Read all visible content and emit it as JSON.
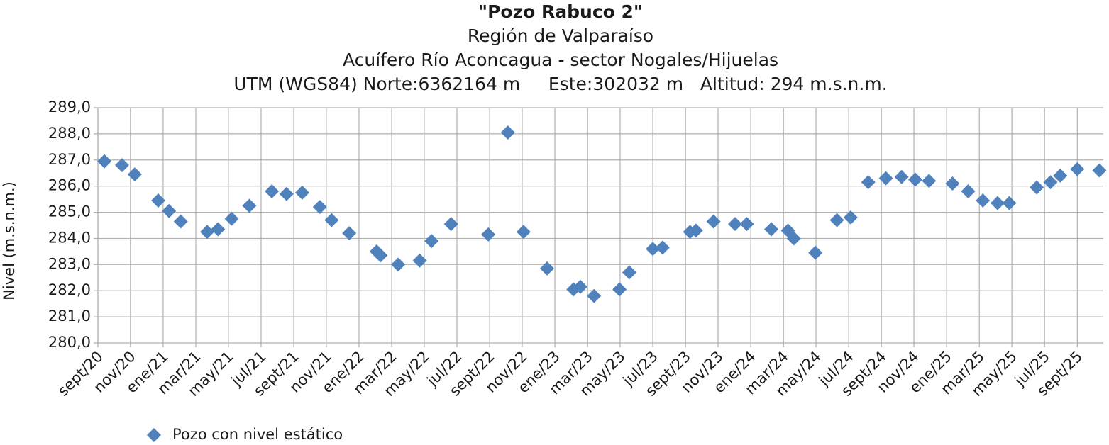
{
  "chart_data": {
    "type": "scatter",
    "title": "\"Pozo Rabuco 2\"",
    "subtitles": [
      "Región de Valparaíso",
      "Acuífero Río Aconcagua - sector Nogales/Hijuelas",
      "UTM (WGS84) Norte:6362164 m     Este:302032 m   Altitud: 294 m.s.n.m."
    ],
    "y_label": "Nivel (m.s.n.m.)",
    "grid": true,
    "legend": "bottom-left",
    "xlim": [
      2020.667,
      2025.8
    ],
    "ylim": [
      280,
      289
    ],
    "yticks": [
      {
        "value": 280,
        "label": "280,0"
      },
      {
        "value": 281,
        "label": "281,0"
      },
      {
        "value": 282,
        "label": "282,0"
      },
      {
        "value": 283,
        "label": "283,0"
      },
      {
        "value": 284,
        "label": "284,0"
      },
      {
        "value": 285,
        "label": "285,0"
      },
      {
        "value": 286,
        "label": "286,0"
      },
      {
        "value": 287,
        "label": "287,0"
      },
      {
        "value": 288,
        "label": "288,0"
      },
      {
        "value": 289,
        "label": "289,0"
      }
    ],
    "xticks": [
      {
        "value": 2020.667,
        "label": "sept/20"
      },
      {
        "value": 2020.833,
        "label": "nov/20"
      },
      {
        "value": 2021,
        "label": "ene/21"
      },
      {
        "value": 2021.167,
        "label": "mar/21"
      },
      {
        "value": 2021.333,
        "label": "may/21"
      },
      {
        "value": 2021.5,
        "label": "jul/21"
      },
      {
        "value": 2021.667,
        "label": "sept/21"
      },
      {
        "value": 2021.833,
        "label": "nov/21"
      },
      {
        "value": 2022,
        "label": "ene/22"
      },
      {
        "value": 2022.167,
        "label": "mar/22"
      },
      {
        "value": 2022.333,
        "label": "may/22"
      },
      {
        "value": 2022.5,
        "label": "jul/22"
      },
      {
        "value": 2022.667,
        "label": "sept/22"
      },
      {
        "value": 2022.833,
        "label": "nov/22"
      },
      {
        "value": 2023,
        "label": "ene/23"
      },
      {
        "value": 2023.167,
        "label": "mar/23"
      },
      {
        "value": 2023.333,
        "label": "may/23"
      },
      {
        "value": 2023.5,
        "label": "jul/23"
      },
      {
        "value": 2023.667,
        "label": "sept/23"
      },
      {
        "value": 2023.833,
        "label": "nov/23"
      },
      {
        "value": 2024,
        "label": "ene/24"
      },
      {
        "value": 2024.167,
        "label": "mar/24"
      },
      {
        "value": 2024.333,
        "label": "may/24"
      },
      {
        "value": 2024.5,
        "label": "jul/24"
      },
      {
        "value": 2024.667,
        "label": "sept/24"
      },
      {
        "value": 2024.833,
        "label": "nov/24"
      },
      {
        "value": 2025,
        "label": "ene/25"
      },
      {
        "value": 2025.167,
        "label": "mar/25"
      },
      {
        "value": 2025.333,
        "label": "may/25"
      },
      {
        "value": 2025.5,
        "label": "jul/25"
      },
      {
        "value": 2025.667,
        "label": "sept/25"
      }
    ],
    "series": [
      {
        "name": "Pozo con nivel estático",
        "color": "#4f81bd",
        "x": [
          2020.7,
          2020.79,
          2020.855,
          2020.975,
          2021.03,
          2021.09,
          2021.225,
          2021.28,
          2021.35,
          2021.44,
          2021.555,
          2021.63,
          2021.71,
          2021.8,
          2021.86,
          2021.95,
          2022.09,
          2022.11,
          2022.2,
          2022.31,
          2022.37,
          2022.47,
          2022.66,
          2022.76,
          2022.84,
          2022.96,
          2023.095,
          2023.13,
          2023.2,
          2023.33,
          2023.38,
          2023.5,
          2023.55,
          2023.69,
          2023.72,
          2023.81,
          2023.92,
          2023.98,
          2024.105,
          2024.19,
          2024.22,
          2024.33,
          2024.44,
          2024.51,
          2024.6,
          2024.69,
          2024.77,
          2024.84,
          2024.91,
          2025.03,
          2025.11,
          2025.185,
          2025.26,
          2025.32,
          2025.46,
          2025.53,
          2025.58,
          2025.667,
          2025.78
        ],
        "values": [
          286.95,
          286.8,
          286.45,
          285.45,
          285.05,
          284.65,
          284.25,
          284.35,
          284.75,
          285.25,
          285.8,
          285.7,
          285.75,
          285.2,
          284.7,
          284.2,
          283.5,
          283.35,
          283.0,
          283.15,
          283.9,
          284.55,
          284.15,
          288.05,
          284.25,
          282.85,
          282.05,
          282.15,
          281.8,
          282.05,
          282.7,
          283.6,
          283.65,
          284.25,
          284.3,
          284.65,
          284.55,
          284.55,
          284.35,
          284.3,
          284.0,
          283.45,
          284.7,
          284.8,
          286.15,
          286.3,
          286.35,
          286.25,
          286.2,
          286.1,
          285.8,
          285.45,
          285.35,
          285.35,
          285.95,
          286.15,
          286.4,
          286.65,
          286.6
        ]
      }
    ]
  }
}
